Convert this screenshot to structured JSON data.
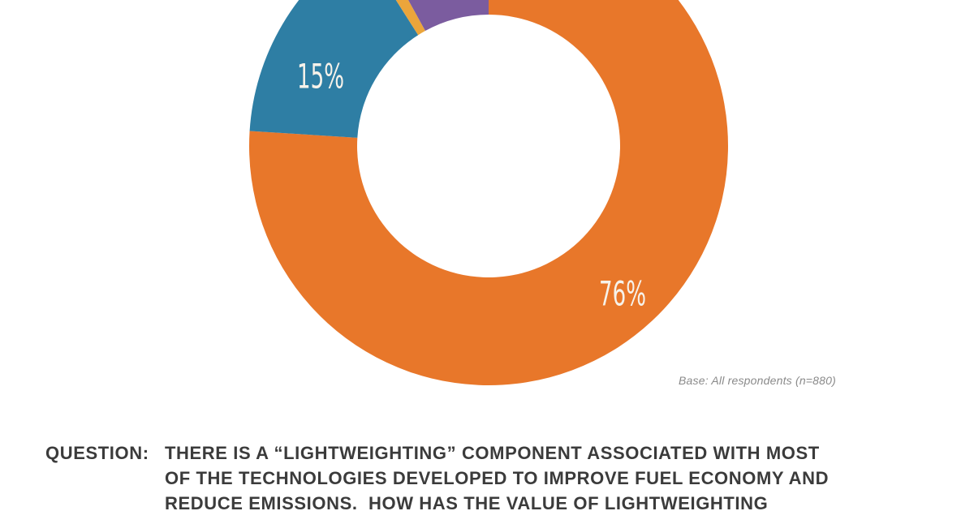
{
  "chart_data": {
    "type": "pie",
    "subtype": "donut",
    "direction": "clockwise",
    "start_angle_deg": 0,
    "legend": "none",
    "value_label_color": "#F6F2EA",
    "segments": [
      {
        "value": 76,
        "label": "76%",
        "color": "#E8772A"
      },
      {
        "value": 15,
        "label": "15%",
        "color": "#2E7EA4"
      },
      {
        "value": 1,
        "label": "",
        "color": "#EBA53B"
      },
      {
        "value": 8,
        "label": "",
        "color": "#7B5C9F"
      }
    ]
  },
  "annotation": {
    "base_note": "Base: All respondents (n=880)"
  },
  "question": {
    "label": "QUESTION:",
    "text_color": "#3B3B3B",
    "lines": [
      "THERE IS A “LIGHTWEIGHTING” COMPONENT ASSOCIATED WITH MOST",
      "OF THE TECHNOLOGIES DEVELOPED TO IMPROVE FUEL ECONOMY AND",
      "REDUCE EMISSIONS.  HOW HAS THE VALUE OF LIGHTWEIGHTING"
    ]
  }
}
